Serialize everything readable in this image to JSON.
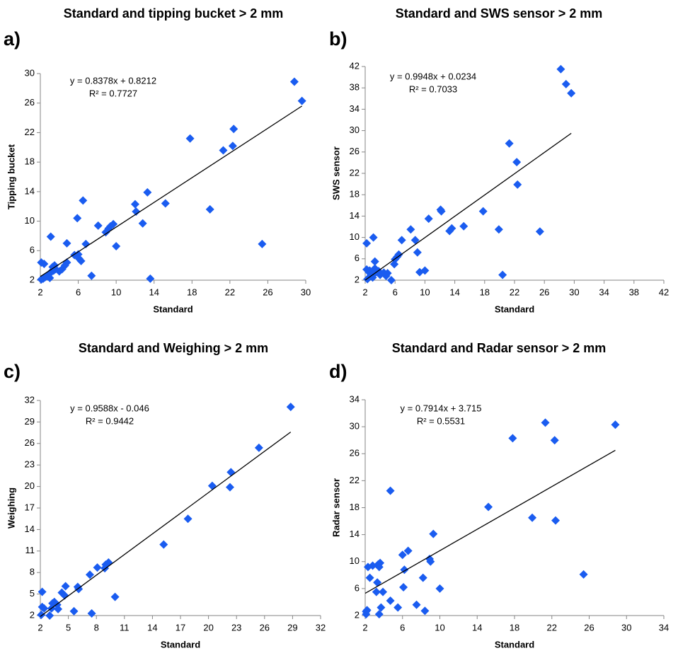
{
  "chart_data": [
    {
      "type": "scatter",
      "panel": "a)",
      "title": "Standard and tipping bucket  > 2 mm",
      "xlabel": "Standard",
      "ylabel": "Tipping bucket",
      "equation": "y = 0.8378x + 0.8212",
      "r_squared": "R² = 0.7727",
      "color": "#1a5cf0",
      "line_color": "#000000",
      "x": [
        2.1,
        2.3,
        2.5,
        2.7,
        3,
        3.2,
        3.4,
        3.6,
        4,
        4.3,
        4.6,
        4.8,
        2.1,
        2.4,
        3.3,
        3.5,
        3,
        2.8,
        3.1,
        4.8,
        5.6,
        6,
        6.1,
        6.3,
        5.9,
        6.5,
        6.8,
        7.4,
        8.1,
        8.9,
        9.2,
        9.4,
        9.7,
        10,
        12,
        12.1,
        12.8,
        13.3,
        13.6,
        15.2,
        17.8,
        19.9,
        21.3,
        22.3,
        22.4,
        25.4,
        28.8,
        29.6
      ],
      "y": [
        2.1,
        2.2,
        2.4,
        2.6,
        2.9,
        3.2,
        3.3,
        3.5,
        3.2,
        3.5,
        4,
        4.4,
        4.4,
        4.2,
        3.8,
        4,
        2.3,
        2.5,
        7.9,
        7,
        5.4,
        5.5,
        4.9,
        4.6,
        10.4,
        12.8,
        6.9,
        2.6,
        9.4,
        8.5,
        9,
        9.3,
        9.6,
        6.6,
        12.3,
        11.3,
        9.7,
        13.9,
        2.2,
        12.4,
        21.2,
        11.6,
        19.6,
        20.2,
        22.5,
        6.9,
        28.9,
        26.3
      ],
      "trendline": {
        "x": [
          2,
          29.6
        ],
        "y": [
          2.5,
          25.6
        ]
      },
      "xlim": [
        2,
        30
      ],
      "ylim": [
        2,
        30
      ],
      "xticks": [
        2,
        6,
        10,
        14,
        18,
        22,
        26,
        30
      ],
      "yticks": [
        2,
        6,
        10,
        14,
        18,
        22,
        26,
        30
      ]
    },
    {
      "type": "scatter",
      "panel": "b)",
      "title": "Standard and SWS sensor > 2 mm",
      "xlabel": "Standard",
      "ylabel": "SWS sensor",
      "equation": "y = 0.9948x + 0.0234",
      "r_squared": "R² = 0.7033",
      "color": "#1a5cf0",
      "line_color": "#000000",
      "x": [
        2.2,
        2.2,
        2.5,
        2.8,
        3,
        2.3,
        3.2,
        3.5,
        3.3,
        3.1,
        3.3,
        3.6,
        4,
        4.5,
        4.8,
        5,
        5.5,
        5.9,
        6,
        6.3,
        6.5,
        6.9,
        8.1,
        8.7,
        9,
        9.3,
        10,
        10.5,
        12.1,
        12.2,
        13.3,
        13.6,
        15.2,
        17.8,
        19.9,
        20.4,
        21.3,
        22.3,
        22.4,
        25.4,
        28.2,
        28.9,
        29.6,
        2.6,
        3.8
      ],
      "y": [
        8.9,
        4,
        3.5,
        3,
        2.5,
        2.2,
        3.2,
        3.8,
        4.2,
        10,
        5.5,
        3.5,
        3,
        3.4,
        2.8,
        3.3,
        2,
        5,
        5.9,
        6.4,
        6.8,
        9.5,
        11.5,
        9.5,
        7.2,
        3.5,
        3.8,
        13.5,
        15.2,
        14.9,
        11.2,
        11.7,
        12.1,
        14.9,
        11.5,
        3,
        27.6,
        24.1,
        19.9,
        11.1,
        41.5,
        38.7,
        37,
        3.8,
        3.7
      ],
      "trendline": {
        "x": [
          2,
          29.6
        ],
        "y": [
          2.01,
          29.5
        ]
      },
      "xlim": [
        2,
        42
      ],
      "ylim": [
        2,
        42
      ],
      "xticks": [
        2,
        6,
        10,
        14,
        18,
        22,
        26,
        30,
        34,
        38,
        42
      ],
      "yticks": [
        2,
        6,
        10,
        14,
        18,
        22,
        26,
        30,
        34,
        38,
        42
      ]
    },
    {
      "type": "scatter",
      "panel": "c)",
      "title": "Standard and Weighing > 2 mm",
      "xlabel": "Standard",
      "ylabel": "Weighing",
      "equation": "y = 0.9588x -  0.046",
      "r_squared": "R² = 0.9442",
      "color": "#1a5cf0",
      "line_color": "#000000",
      "x": [
        2.1,
        2.2,
        2.2,
        2.4,
        3,
        3.2,
        3.3,
        3.5,
        3.8,
        3.9,
        4.3,
        4.6,
        4.7,
        5.6,
        6,
        6.1,
        7.3,
        7.5,
        8.1,
        8.9,
        9,
        9.3,
        10,
        15.2,
        17.8,
        20.4,
        22.3,
        22.4,
        25.4,
        28.8
      ],
      "y": [
        2.1,
        5.3,
        3.2,
        3,
        2,
        3,
        3.7,
        3.9,
        3.5,
        2.9,
        5.2,
        4.8,
        6.1,
        2.6,
        6,
        5.7,
        7.7,
        2.3,
        8.7,
        8.6,
        9.1,
        9.4,
        4.6,
        11.9,
        15.5,
        20.1,
        19.9,
        22,
        25.4,
        31.1
      ],
      "trendline": {
        "x": [
          2,
          28.8
        ],
        "y": [
          1.87,
          27.6
        ]
      },
      "xlim": [
        2,
        32
      ],
      "ylim": [
        2,
        32
      ],
      "xticks": [
        2,
        5,
        8,
        11,
        14,
        17,
        20,
        23,
        26,
        29,
        32
      ],
      "yticks": [
        2,
        5,
        8,
        11,
        14,
        17,
        20,
        23,
        26,
        29,
        32
      ]
    },
    {
      "type": "scatter",
      "panel": "d)",
      "title": "Standard and Radar sensor > 2 mm",
      "xlabel": "Standard",
      "ylabel": "Radar sensor",
      "equation": "y = 0.7914x + 3.715",
      "r_squared": "R² = 0.5531",
      "color": "#1a5cf0",
      "line_color": "#000000",
      "x": [
        2.1,
        2.2,
        2.3,
        2.5,
        2.8,
        3.2,
        3.3,
        3.4,
        3.5,
        3.6,
        3.7,
        3.5,
        3.9,
        4.7,
        4.7,
        5.5,
        6,
        6.1,
        6.2,
        6.6,
        7.5,
        8.2,
        8.4,
        8.9,
        9,
        9.3,
        10,
        15.2,
        17.8,
        19.9,
        21.3,
        22.3,
        22.4,
        25.4,
        28.8,
        2.1
      ],
      "y": [
        2.2,
        2.8,
        9.2,
        7.6,
        9.4,
        5.5,
        6.9,
        9.6,
        9.2,
        9.8,
        3.2,
        2.2,
        5.5,
        4.2,
        20.5,
        3.2,
        11,
        6.2,
        8.8,
        11.6,
        3.6,
        7.6,
        2.7,
        10.4,
        10,
        14.1,
        6,
        18.1,
        28.3,
        16.5,
        30.6,
        28,
        16.1,
        8.1,
        30.3,
        2.6
      ],
      "trendline": {
        "x": [
          2,
          28.8
        ],
        "y": [
          5.3,
          26.5
        ]
      },
      "xlim": [
        2,
        34
      ],
      "ylim": [
        2,
        34
      ],
      "xticks": [
        2,
        6,
        10,
        14,
        18,
        22,
        26,
        30,
        34
      ],
      "yticks": [
        2,
        6,
        10,
        14,
        18,
        22,
        26,
        30,
        34
      ]
    }
  ]
}
